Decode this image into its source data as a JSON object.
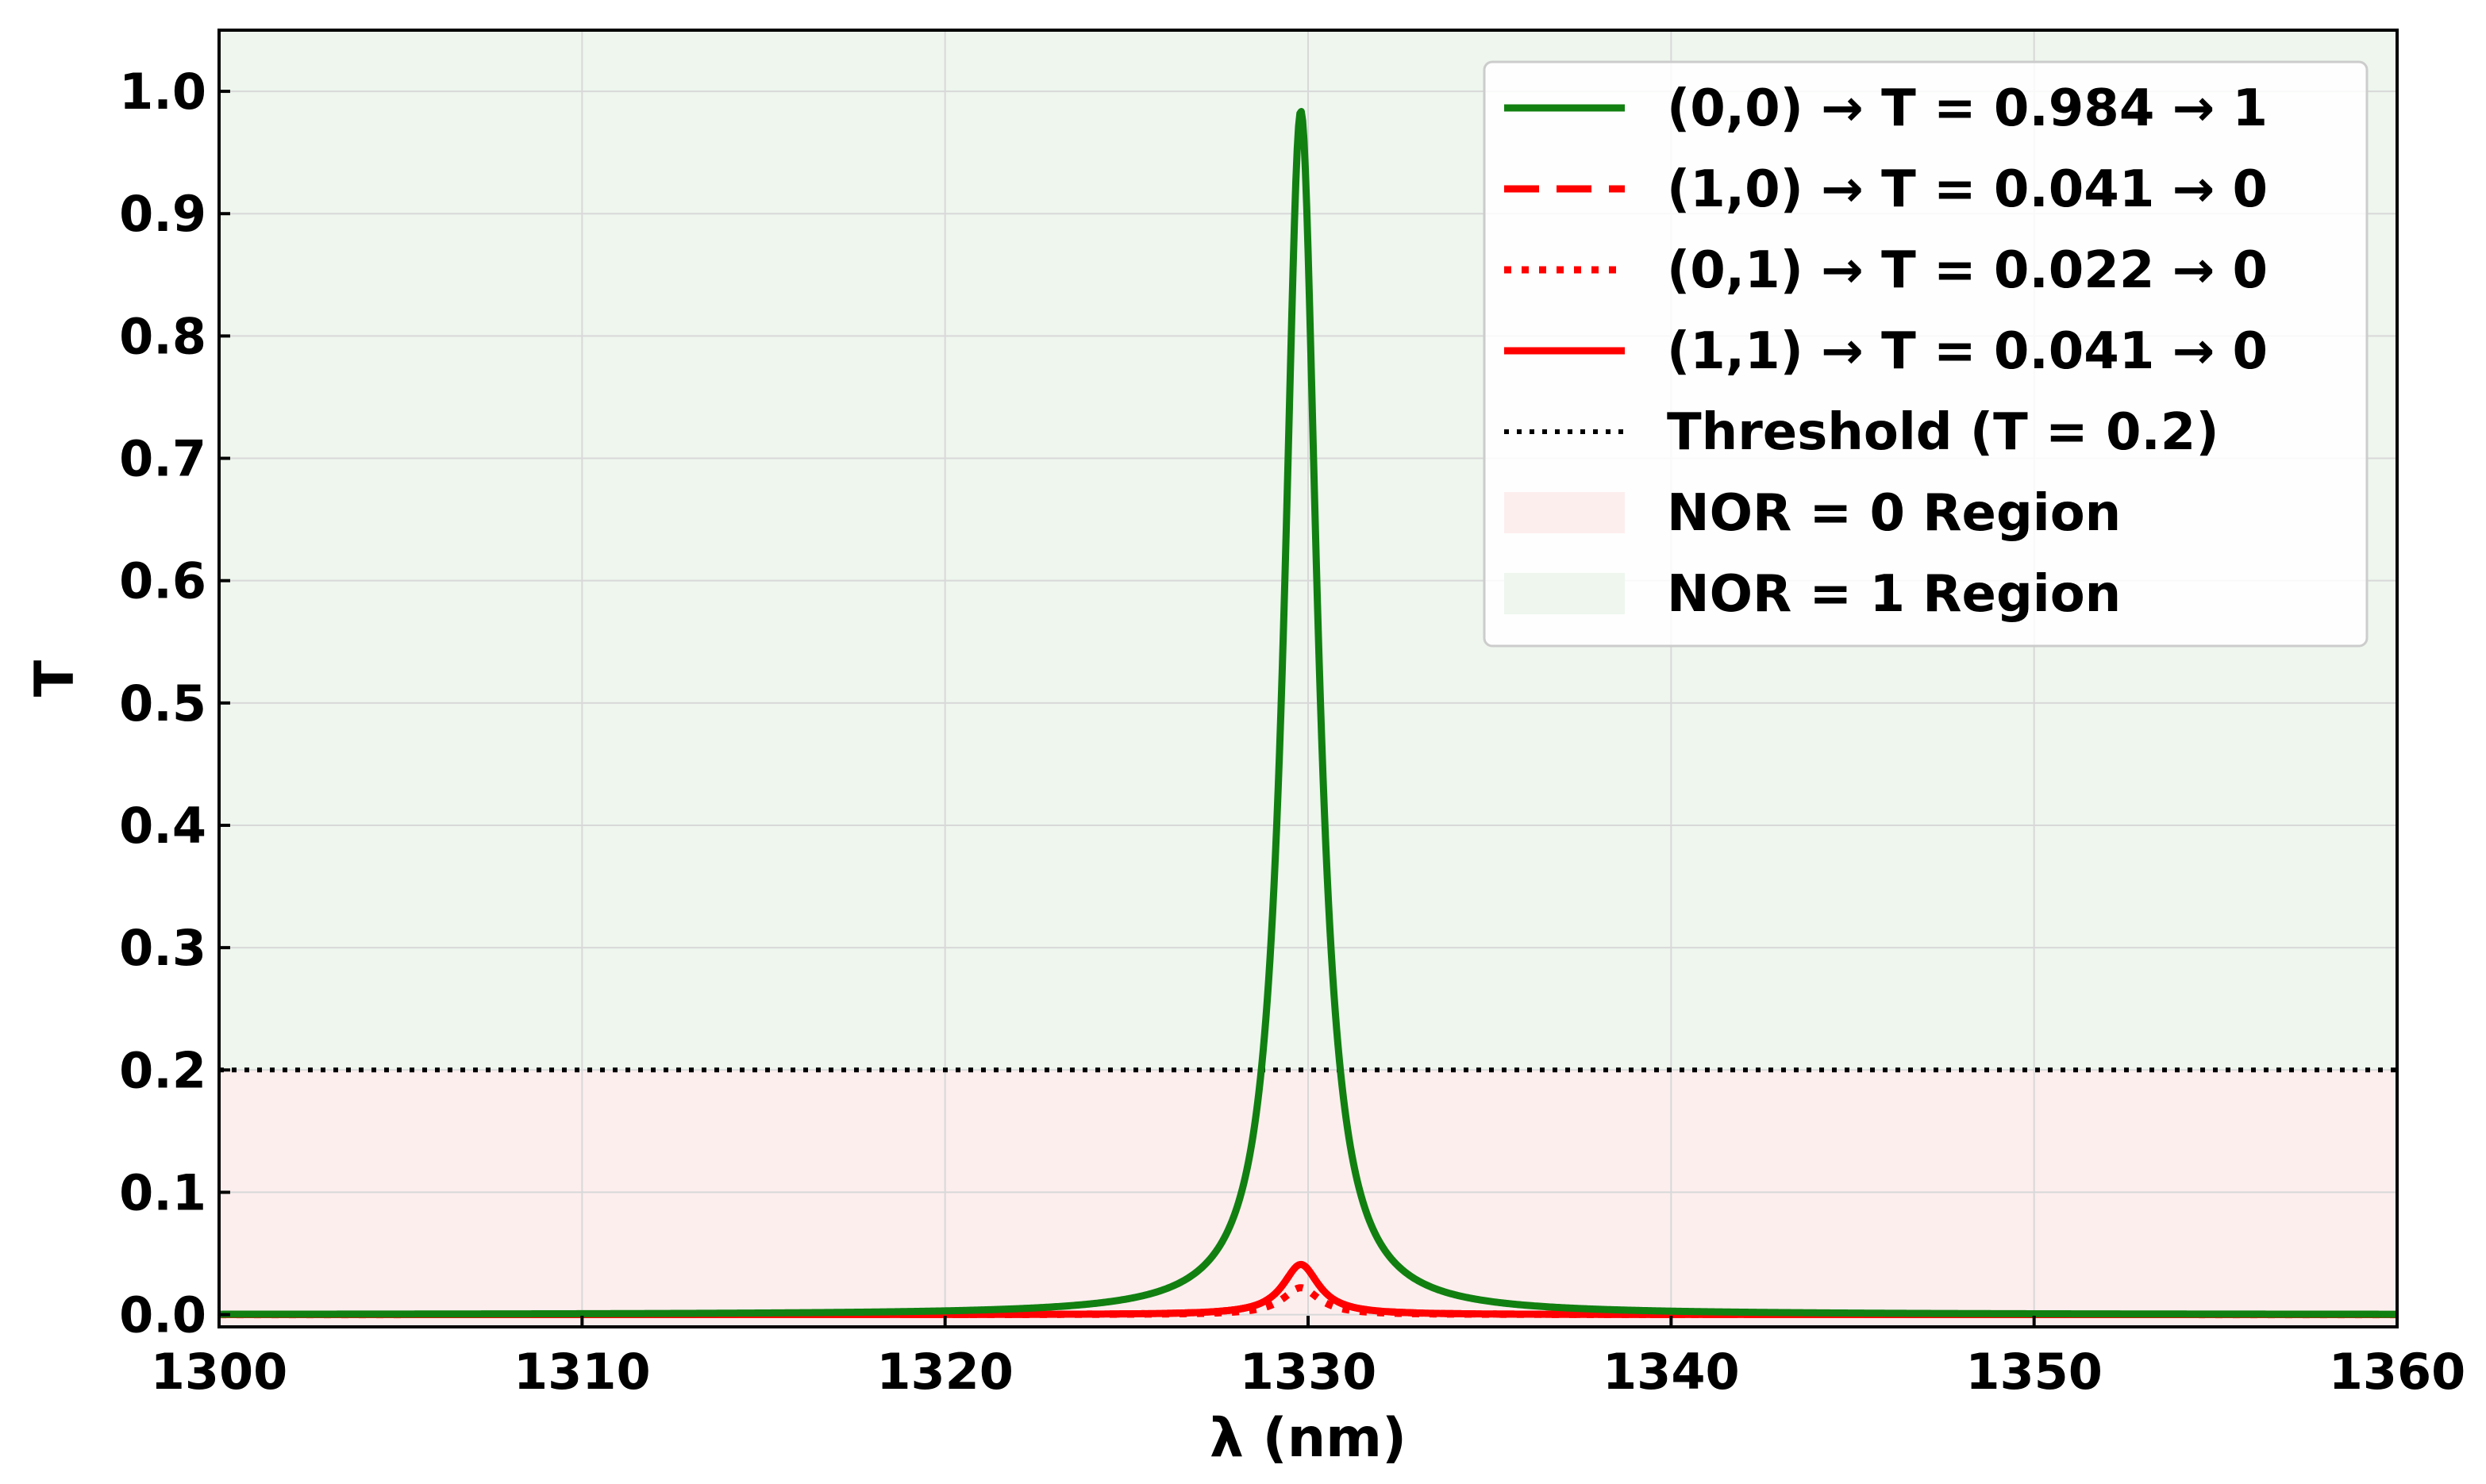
{
  "chart_data": {
    "type": "line",
    "xlabel": "λ (nm)",
    "ylabel": "T",
    "xlim": [
      1300,
      1360
    ],
    "ylim": [
      -0.01,
      1.05
    ],
    "x_ticks": [
      1300,
      1310,
      1320,
      1330,
      1340,
      1350,
      1360
    ],
    "x_tick_labels": [
      "1300",
      "1310",
      "1320",
      "1330",
      "1340",
      "1350",
      "1360"
    ],
    "y_ticks": [
      0.0,
      0.1,
      0.2,
      0.3,
      0.4,
      0.5,
      0.6,
      0.7,
      0.8,
      0.9,
      1.0
    ],
    "y_tick_labels": [
      "0.0",
      "0.1",
      "0.2",
      "0.3",
      "0.4",
      "0.5",
      "0.6",
      "0.7",
      "0.8",
      "0.9",
      "1.0"
    ],
    "grid": true,
    "legend_position": "top-right",
    "threshold": 0.2,
    "regions": [
      {
        "name": "NOR = 0 Region",
        "y_range": [
          -0.01,
          0.2
        ],
        "color": "#fdeeee"
      },
      {
        "name": "NOR = 1 Region",
        "y_range": [
          0.2,
          1.05
        ],
        "color": "#eef6ee"
      }
    ],
    "series": [
      {
        "name": "(0,0) → T = 0.984 → 1",
        "peak_x": 1329.8,
        "peak_y": 0.984,
        "hwhm": 0.55,
        "color": "#118011",
        "style": "solid"
      },
      {
        "name": "(1,0) → T = 0.041 → 0",
        "peak_x": 1329.8,
        "peak_y": 0.041,
        "hwhm": 0.6,
        "color": "#ff0000",
        "style": "dashed"
      },
      {
        "name": "(0,1) → T = 0.022 → 0",
        "peak_x": 1329.8,
        "peak_y": 0.022,
        "hwhm": 0.6,
        "color": "#ff0000",
        "style": "dotted"
      },
      {
        "name": "(1,1) → T = 0.041 → 0",
        "peak_x": 1329.8,
        "peak_y": 0.041,
        "hwhm": 0.6,
        "color": "#ff0000",
        "style": "solid"
      }
    ],
    "legend": [
      {
        "label": "(0,0) → T = 0.984 → 1",
        "kind": "line",
        "color": "#118011",
        "style": "solid"
      },
      {
        "label": "(1,0) → T = 0.041 → 0",
        "kind": "line",
        "color": "#ff0000",
        "style": "dashed"
      },
      {
        "label": "(0,1) → T = 0.022 → 0",
        "kind": "line",
        "color": "#ff0000",
        "style": "dotted"
      },
      {
        "label": "(1,1) → T = 0.041 → 0",
        "kind": "line",
        "color": "#ff0000",
        "style": "solid"
      },
      {
        "label": "Threshold (T = 0.2)",
        "kind": "line",
        "color": "#000000",
        "style": "dotted"
      },
      {
        "label": "NOR = 0 Region",
        "kind": "patch",
        "color": "#fdeeee"
      },
      {
        "label": "NOR = 1 Region",
        "kind": "patch",
        "color": "#eef6ee"
      }
    ]
  }
}
